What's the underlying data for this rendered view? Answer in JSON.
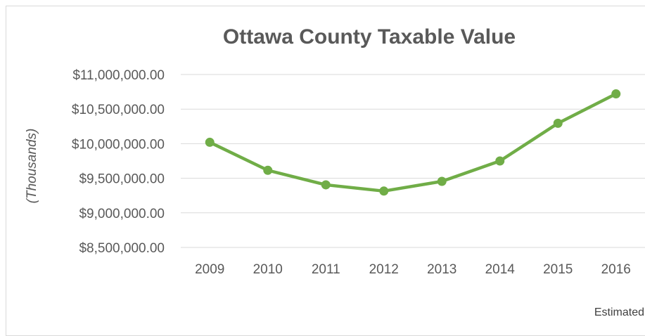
{
  "chart_data": {
    "type": "line",
    "title": "Ottawa County Taxable Value",
    "xlabel": "",
    "ylabel": "(Thousands)",
    "categories": [
      "2009",
      "2010",
      "2011",
      "2012",
      "2013",
      "2014",
      "2015",
      "2016"
    ],
    "series": [
      {
        "values": [
          10020000,
          9615000,
          9405000,
          9315000,
          9455000,
          9750000,
          10295000,
          10720000
        ],
        "color": "#70ad47"
      }
    ],
    "ylim": [
      8500000,
      11000000
    ],
    "yticks": [
      8500000,
      9000000,
      9500000,
      10000000,
      10500000,
      11000000
    ],
    "ytick_labels": [
      "$8,500,000.00",
      "$9,000,000.00",
      "$9,500,000.00",
      "$10,000,000.00",
      "$10,500,000.00",
      "$11,000,000.00"
    ],
    "grid": true,
    "legend": "none",
    "gridline_color": "#d9d9d9",
    "annotation": "Estimated"
  }
}
